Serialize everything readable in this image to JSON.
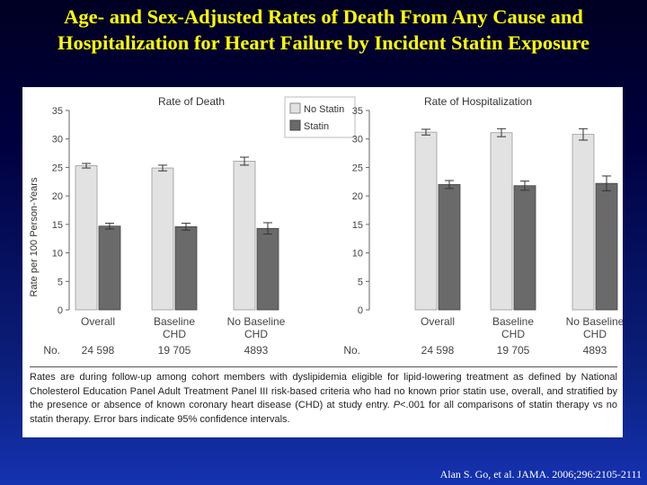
{
  "slide": {
    "title_line1": "Age- and Sex-Adjusted Rates of Death From Any Cause and",
    "title_line2": "Hospitalization for Heart Failure by Incident Statin Exposure",
    "citation": "Alan S. Go,  et  al. JAMA. 2006;296:2105-2111"
  },
  "colors": {
    "no_statin": "#e2e2e2",
    "statin": "#6a6a6a",
    "title": "#ffff00"
  },
  "legend": {
    "no_statin": "No Statin",
    "statin": "Statin"
  },
  "axis": {
    "ylabel": "Rate per 100 Person-Years",
    "no_label": "No."
  },
  "footnote": {
    "part1": "Rates are during follow-up among cohort members with dyslipidemia eligible for lipid-lowering treatment as defined by National Cholesterol Education Panel Adult Treatment Panel III risk-based criteria who had no known prior statin use, overall, and stratified by the presence or absence of known coronary heart disease (CHD) at study entry.",
    "p_symbol": "P",
    "part2": "<.001 for all comparisons of statin therapy vs no statin therapy. Error bars indicate 95% confidence intervals."
  },
  "chart_data": [
    {
      "type": "bar",
      "title": "Rate of Death",
      "ylabel": "Rate per 100 Person-Years",
      "ylim": [
        0,
        35
      ],
      "yticks": [
        0,
        5,
        10,
        15,
        20,
        25,
        30,
        35
      ],
      "categories": [
        "Overall",
        "Baseline\nCHD",
        "No Baseline\nCHD"
      ],
      "n_values": [
        "24 598",
        "19 705",
        "4893"
      ],
      "series": [
        {
          "name": "No Statin",
          "values": [
            25.3,
            24.9,
            26.1
          ],
          "ci_low": [
            24.9,
            24.4,
            25.4
          ],
          "ci_high": [
            25.7,
            25.4,
            26.8
          ]
        },
        {
          "name": "Statin",
          "values": [
            14.7,
            14.6,
            14.3
          ],
          "ci_low": [
            14.2,
            14.0,
            13.3
          ],
          "ci_high": [
            15.2,
            15.2,
            15.3
          ]
        }
      ]
    },
    {
      "type": "bar",
      "title": "Rate of Hospitalization",
      "ylim": [
        0,
        35
      ],
      "yticks": [
        0,
        5,
        10,
        15,
        20,
        25,
        30,
        35
      ],
      "categories": [
        "Overall",
        "Baseline\nCHD",
        "No Baseline\nCHD"
      ],
      "n_values": [
        "24 598",
        "19 705",
        "4893"
      ],
      "series": [
        {
          "name": "No Statin",
          "values": [
            31.2,
            31.1,
            30.8
          ],
          "ci_low": [
            30.7,
            30.4,
            29.8
          ],
          "ci_high": [
            31.7,
            31.8,
            31.8
          ]
        },
        {
          "name": "Statin",
          "values": [
            22.0,
            21.8,
            22.2
          ],
          "ci_low": [
            21.3,
            21.0,
            20.9
          ],
          "ci_high": [
            22.7,
            22.6,
            23.5
          ]
        }
      ]
    }
  ]
}
